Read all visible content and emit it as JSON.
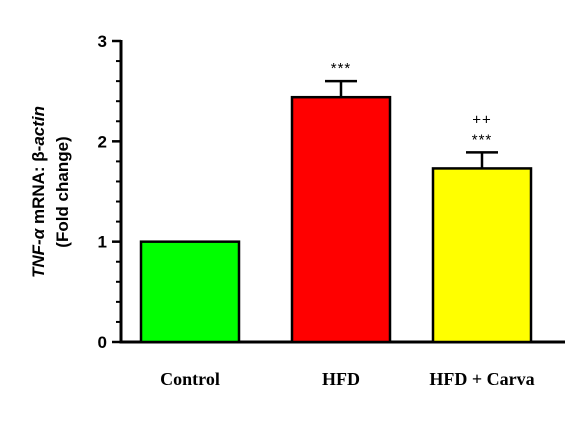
{
  "chart_data": {
    "type": "bar",
    "categories": [
      "Control",
      "HFD",
      "HFD + Carva"
    ],
    "values": [
      1.0,
      2.44,
      1.73
    ],
    "errors": [
      0.0,
      0.16,
      0.16
    ],
    "colors": [
      "#00ff00",
      "#ff0000",
      "#ffff00"
    ],
    "annotations": [
      [],
      [
        "***"
      ],
      [
        "++",
        "***"
      ]
    ],
    "ylabel": {
      "line1_italic_a": "TNF-α",
      "line1_regular": " mRNA: β-",
      "line1_italic_b": "actin",
      "line2": "(Fold change)"
    },
    "ylim": [
      0,
      3
    ],
    "yticks": [
      "0",
      "1",
      "2",
      "3"
    ],
    "grid": false
  }
}
